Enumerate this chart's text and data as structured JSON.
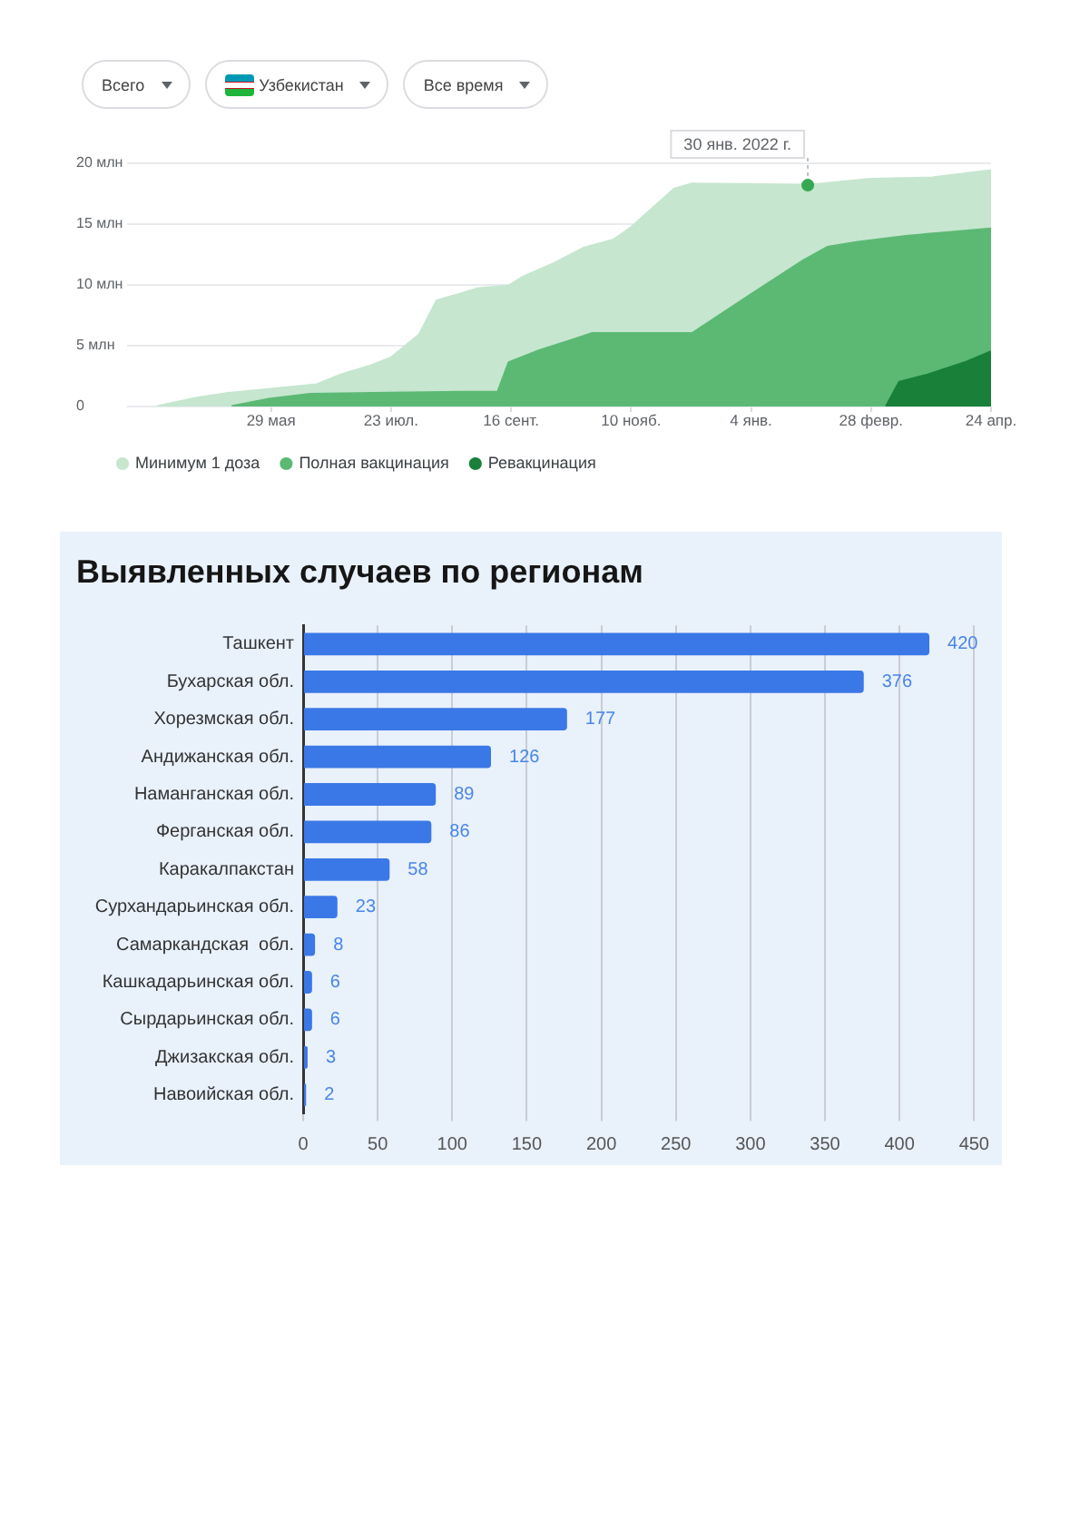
{
  "chart_data": [
    {
      "type": "area",
      "annotations": [
        "Всего",
        "Узбекистан",
        "Все время"
      ],
      "series": [
        {
          "name": "Минимум 1 доза",
          "color": "#c6e6cf",
          "x": [
            "2021-04-07",
            "2021-04-25",
            "2021-05-10",
            "2021-05-28",
            "2021-06-19",
            "2021-06-30",
            "2021-07-13",
            "2021-07-23",
            "2021-08-05",
            "2021-08-13",
            "2021-08-21",
            "2021-09-01",
            "2021-09-15",
            "2021-09-21",
            "2021-10-05",
            "2021-10-19",
            "2021-11-02",
            "2021-11-10",
            "2021-11-18",
            "2021-11-30",
            "2021-12-08",
            "2022-01-30",
            "2022-02-28",
            "2022-03-28",
            "2022-04-24"
          ],
          "values": [
            0,
            0.7,
            1.1,
            1.4,
            1.8,
            2.6,
            3.3,
            4.0,
            5.9,
            8.7,
            9.1,
            9.7,
            9.9,
            10.6,
            11.7,
            13.0,
            13.7,
            14.7,
            16.0,
            17.9,
            18.3,
            18.2,
            18.7,
            18.8,
            19.4
          ]
        },
        {
          "name": "Полная вакцинация",
          "color": "#5bb974",
          "x": [
            "2021-05-11",
            "2021-05-28",
            "2021-06-16",
            "2021-07-22",
            "2021-09-10",
            "2021-09-15",
            "2021-09-29",
            "2021-10-13",
            "2021-10-23",
            "2021-12-08",
            "2022-01-04",
            "2022-01-28",
            "2022-02-08",
            "2022-02-22",
            "2022-03-16",
            "2022-04-24"
          ],
          "values": [
            0,
            0.6,
            1.0,
            1.1,
            1.2,
            3.6,
            4.6,
            5.4,
            6.0,
            6.0,
            9.2,
            12.0,
            13.1,
            13.5,
            14.0,
            14.6
          ]
        },
        {
          "name": "Ревакцинация",
          "color": "#188038",
          "x": [
            "2022-03-07",
            "2022-03-13",
            "2022-03-26",
            "2022-04-12",
            "2022-04-24"
          ],
          "values": [
            0,
            2.0,
            2.6,
            3.6,
            4.5
          ]
        },
        {
          "type": "scatter",
          "color": "#34a853",
          "x": [
            "2022-01-30"
          ],
          "values": [
            18.2
          ]
        }
      ],
      "ref_lines": [
        {
          "axis": "x",
          "value": "2022-01-30",
          "label": "30 янв. 2022 г.",
          "color": "#bdc1c6",
          "line_style": "dotted"
        }
      ],
      "xlim": [
        "2021-03-24",
        "2022-04-24"
      ],
      "xticks": [
        {
          "value": "2021-05-29",
          "label": "29 мая"
        },
        {
          "value": "2021-07-23",
          "label": "23 июл."
        },
        {
          "value": "2021-09-16",
          "label": "16 сент."
        },
        {
          "value": "2021-11-10",
          "label": "10 нояб."
        },
        {
          "value": "2022-01-04",
          "label": "4 янв."
        },
        {
          "value": "2022-02-28",
          "label": "28 февр."
        },
        {
          "value": "2022-04-24",
          "label": "24 апр."
        }
      ],
      "ylim": [
        0,
        20
      ],
      "yticks": [
        0,
        {
          "value": 5,
          "label": "5 млн"
        },
        {
          "value": 10,
          "label": "10 млн"
        },
        {
          "value": 15,
          "label": "15 млн"
        },
        {
          "value": 20,
          "label": "20 млн"
        }
      ],
      "grid": "y",
      "legend": "bottom left"
    },
    {
      "type": "bar",
      "orientation": "horizontal",
      "title": "Выявленных случаев по регионам",
      "categories": [
        "Ташкент",
        "Бухарская обл.",
        "Хорезмская обл.",
        "Андижанская обл.",
        "Наманганская обл.",
        "Ферганская обл.",
        "Каракалпакстан",
        "Сурхандарьинская обл.",
        "Самаркандская  обл.",
        "Кашкадарьинская обл.",
        "Сырдарьинская обл.",
        "Джизакская обл.",
        "Навоийская обл."
      ],
      "values": [
        420,
        376,
        177,
        126,
        89,
        86,
        58,
        23,
        8,
        6,
        6,
        3,
        2
      ],
      "color": "#3b78e7",
      "xlim": [
        0,
        450
      ],
      "xticks": [
        0,
        50,
        100,
        150,
        200,
        250,
        300,
        350,
        400,
        450
      ],
      "grid": "x",
      "data_labels": true
    }
  ]
}
